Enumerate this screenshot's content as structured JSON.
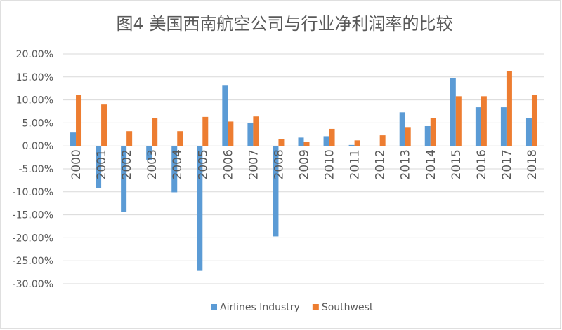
{
  "chart_data": {
    "type": "bar",
    "title": "图4 美国西南航空公司与行业净利润率的比较",
    "categories": [
      "2000",
      "2001",
      "2002",
      "2003",
      "2004",
      "2005",
      "2006",
      "2007",
      "2008",
      "2009",
      "2010",
      "2011",
      "2012",
      "2013",
      "2014",
      "2015",
      "2016",
      "2017",
      "2018"
    ],
    "series": [
      {
        "name": "Airlines Industry",
        "color": "#5b9bd5",
        "values": [
          2.9,
          -9.2,
          -14.4,
          -3.0,
          -10.1,
          -27.2,
          13.1,
          5.0,
          -19.7,
          1.8,
          2.1,
          0.2,
          0,
          7.3,
          4.3,
          14.7,
          8.4,
          8.4,
          6.0
        ]
      },
      {
        "name": "Southwest",
        "color": "#ed7d31",
        "values": [
          11.1,
          9.0,
          3.2,
          6.1,
          3.2,
          6.3,
          5.3,
          6.4,
          1.5,
          0.8,
          3.7,
          1.2,
          2.3,
          4.1,
          6.0,
          10.8,
          10.8,
          16.3,
          11.1
        ]
      }
    ],
    "ylim": [
      -30,
      20
    ],
    "yticks": [
      {
        "value": -30,
        "label": "-30.00%"
      },
      {
        "value": -25,
        "label": "-25.00%"
      },
      {
        "value": -20,
        "label": "-20.00%"
      },
      {
        "value": -15,
        "label": "-15.00%"
      },
      {
        "value": -10,
        "label": "-10.00%"
      },
      {
        "value": -5,
        "label": "-5.00%"
      },
      {
        "value": 0,
        "label": "0.00%"
      },
      {
        "value": 5,
        "label": "5.00%"
      },
      {
        "value": 10,
        "label": "10.00%"
      },
      {
        "value": 15,
        "label": "15.00%"
      },
      {
        "value": 20,
        "label": "20.00%"
      }
    ],
    "grid": true,
    "legend": "bottom"
  }
}
